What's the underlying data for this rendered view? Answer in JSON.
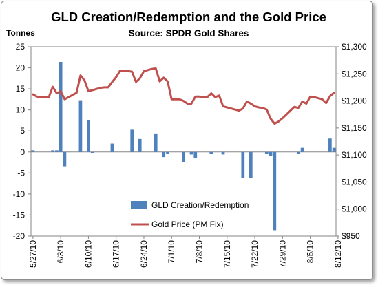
{
  "chart_data": {
    "type": "bar",
    "title": "GLD Creation/Redemption and the Gold Price",
    "subtitle": "Source: SPDR Gold Shares",
    "ylabel": "Tonnes",
    "ylim": [
      -20,
      25
    ],
    "yticks": [
      -20,
      -15,
      -10,
      -5,
      0,
      5,
      10,
      15,
      20,
      25
    ],
    "y2lim": [
      950,
      1300
    ],
    "y2ticks": [
      "$950",
      "$1,000",
      "$1,050",
      "$1,100",
      "$1,150",
      "$1,200",
      "$1,250",
      "$1,300"
    ],
    "xlim": [
      0,
      77
    ],
    "xtick_labels": [
      "5/27/10",
      "6/3/10",
      "6/10/10",
      "6/17/10",
      "6/24/10",
      "7/1/10",
      "7/8/10",
      "7/15/10",
      "7/22/10",
      "7/29/10",
      "8/5/10",
      "8/12/10"
    ],
    "legend": {
      "placement": "bottom-center"
    },
    "colors": {
      "bars": "#4f81bd",
      "line": "#c0504d",
      "right_axis_text": "#c0504d",
      "left_axis_label": "#1f497d"
    },
    "series": [
      {
        "name": "GLD Creation/Redemption",
        "type": "bar",
        "axis": "left",
        "points": [
          {
            "x": 0,
            "y": 0.4
          },
          {
            "x": 5,
            "y": 0.4
          },
          {
            "x": 6,
            "y": 0.4
          },
          {
            "x": 7,
            "y": 21.4
          },
          {
            "x": 8,
            "y": -3.4
          },
          {
            "x": 12,
            "y": 12.3
          },
          {
            "x": 14,
            "y": 7.6
          },
          {
            "x": 15,
            "y": -0.2
          },
          {
            "x": 20,
            "y": 2.0
          },
          {
            "x": 25,
            "y": 5.3
          },
          {
            "x": 27,
            "y": 3.1
          },
          {
            "x": 31,
            "y": 4.4
          },
          {
            "x": 33,
            "y": -1.2
          },
          {
            "x": 34,
            "y": -0.4
          },
          {
            "x": 38,
            "y": -2.4
          },
          {
            "x": 40,
            "y": -0.6
          },
          {
            "x": 41,
            "y": -1.5
          },
          {
            "x": 45,
            "y": -0.5
          },
          {
            "x": 48,
            "y": -0.6
          },
          {
            "x": 53,
            "y": -6.1
          },
          {
            "x": 55,
            "y": -6.1
          },
          {
            "x": 59,
            "y": -0.5
          },
          {
            "x": 60,
            "y": -0.9
          },
          {
            "x": 61,
            "y": -18.6
          },
          {
            "x": 67,
            "y": -0.4
          },
          {
            "x": 68,
            "y": 1.0
          },
          {
            "x": 75,
            "y": 3.2
          },
          {
            "x": 76,
            "y": 1.0
          }
        ]
      },
      {
        "name": "Gold Price (PM Fix)",
        "type": "line",
        "axis": "right",
        "points": [
          {
            "x": 0,
            "y": 1212
          },
          {
            "x": 1,
            "y": 1208
          },
          {
            "x": 2,
            "y": 1207
          },
          {
            "x": 3,
            "y": 1207
          },
          {
            "x": 4,
            "y": 1207
          },
          {
            "x": 5,
            "y": 1226
          },
          {
            "x": 6,
            "y": 1214
          },
          {
            "x": 7,
            "y": 1218
          },
          {
            "x": 8,
            "y": 1203
          },
          {
            "x": 9,
            "y": 1207
          },
          {
            "x": 10,
            "y": 1211
          },
          {
            "x": 11,
            "y": 1215
          },
          {
            "x": 12,
            "y": 1247
          },
          {
            "x": 13,
            "y": 1238
          },
          {
            "x": 14,
            "y": 1218
          },
          {
            "x": 15,
            "y": 1220
          },
          {
            "x": 16,
            "y": 1222
          },
          {
            "x": 17,
            "y": 1224
          },
          {
            "x": 18,
            "y": 1225
          },
          {
            "x": 19,
            "y": 1225
          },
          {
            "x": 20,
            "y": 1235
          },
          {
            "x": 21,
            "y": 1244
          },
          {
            "x": 22,
            "y": 1256
          },
          {
            "x": 23,
            "y": 1255
          },
          {
            "x": 24,
            "y": 1255
          },
          {
            "x": 25,
            "y": 1254
          },
          {
            "x": 26,
            "y": 1235
          },
          {
            "x": 27,
            "y": 1242
          },
          {
            "x": 28,
            "y": 1255
          },
          {
            "x": 29,
            "y": 1257
          },
          {
            "x": 30,
            "y": 1259
          },
          {
            "x": 31,
            "y": 1260
          },
          {
            "x": 32,
            "y": 1236
          },
          {
            "x": 33,
            "y": 1243
          },
          {
            "x": 34,
            "y": 1236
          },
          {
            "x": 35,
            "y": 1203
          },
          {
            "x": 36,
            "y": 1203
          },
          {
            "x": 37,
            "y": 1203
          },
          {
            "x": 38,
            "y": 1200
          },
          {
            "x": 39,
            "y": 1195
          },
          {
            "x": 40,
            "y": 1195
          },
          {
            "x": 41,
            "y": 1208
          },
          {
            "x": 42,
            "y": 1208
          },
          {
            "x": 43,
            "y": 1207
          },
          {
            "x": 44,
            "y": 1207
          },
          {
            "x": 45,
            "y": 1214
          },
          {
            "x": 46,
            "y": 1207
          },
          {
            "x": 47,
            "y": 1210
          },
          {
            "x": 48,
            "y": 1190
          },
          {
            "x": 49,
            "y": 1188
          },
          {
            "x": 50,
            "y": 1186
          },
          {
            "x": 51,
            "y": 1184
          },
          {
            "x": 52,
            "y": 1182
          },
          {
            "x": 53,
            "y": 1186
          },
          {
            "x": 54,
            "y": 1199
          },
          {
            "x": 55,
            "y": 1195
          },
          {
            "x": 56,
            "y": 1190
          },
          {
            "x": 57,
            "y": 1188
          },
          {
            "x": 58,
            "y": 1187
          },
          {
            "x": 59,
            "y": 1184
          },
          {
            "x": 60,
            "y": 1167
          },
          {
            "x": 61,
            "y": 1158
          },
          {
            "x": 62,
            "y": 1162
          },
          {
            "x": 63,
            "y": 1168
          },
          {
            "x": 64,
            "y": 1175
          },
          {
            "x": 65,
            "y": 1182
          },
          {
            "x": 66,
            "y": 1189
          },
          {
            "x": 67,
            "y": 1187
          },
          {
            "x": 68,
            "y": 1199
          },
          {
            "x": 69,
            "y": 1195
          },
          {
            "x": 70,
            "y": 1208
          },
          {
            "x": 71,
            "y": 1207
          },
          {
            "x": 72,
            "y": 1205
          },
          {
            "x": 73,
            "y": 1203
          },
          {
            "x": 74,
            "y": 1196
          },
          {
            "x": 75,
            "y": 1209
          },
          {
            "x": 76,
            "y": 1215
          }
        ]
      }
    ]
  }
}
